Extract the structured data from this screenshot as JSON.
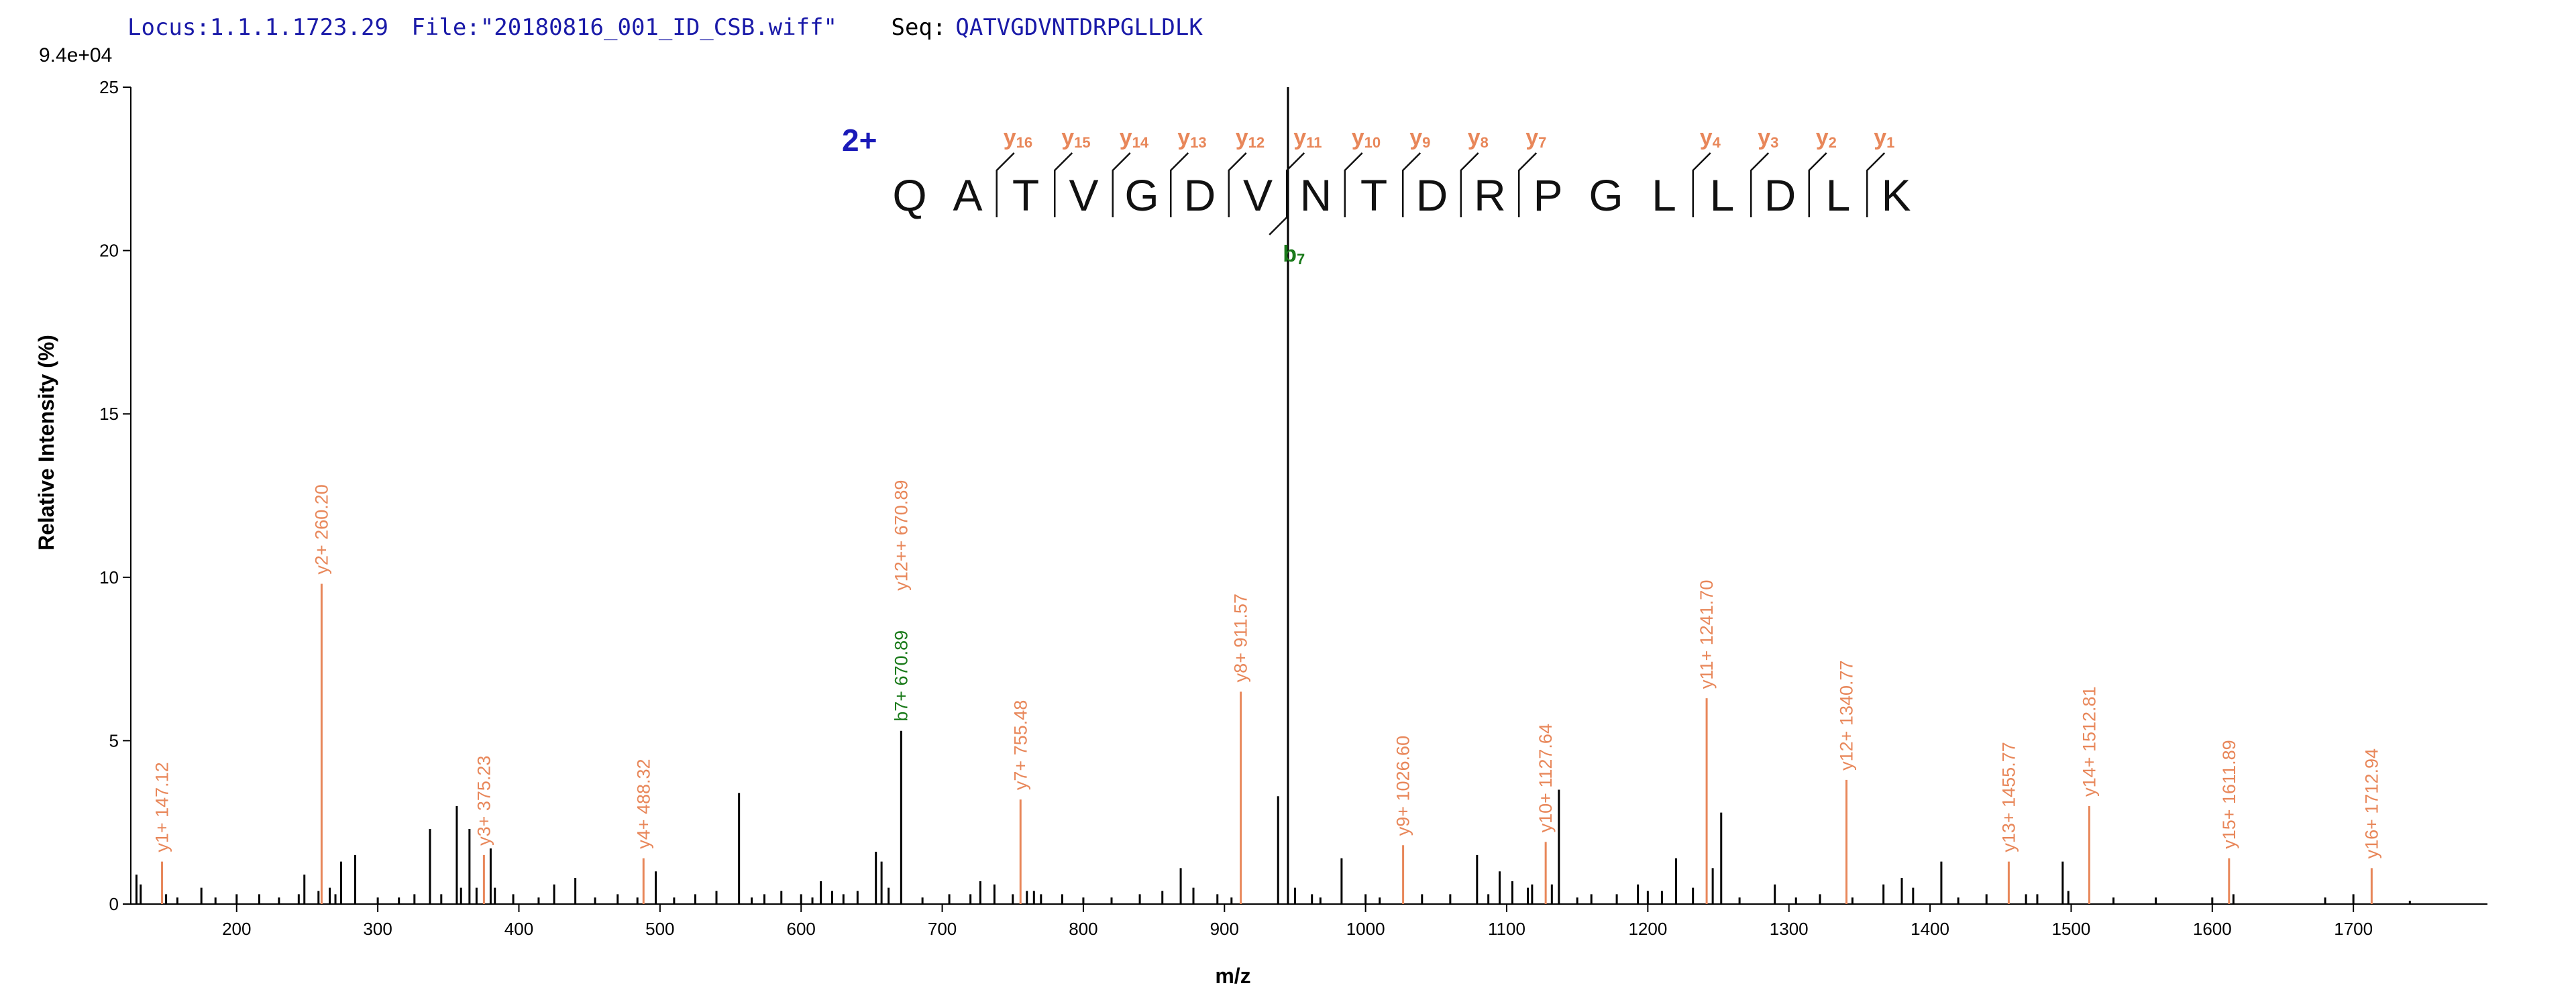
{
  "header": {
    "locus_label": "Locus:",
    "locus_value": "1.1.1.1723.29",
    "file_label": "File:",
    "file_value": "\"20180816_001_ID_CSB.wiff\"",
    "seq_label": "Seq:",
    "seq_value": "QATVGDVNTDRPGLLDLK"
  },
  "colors": {
    "y_ion": "#e8875a",
    "b_ion": "#1a7a1a",
    "other": "#000000",
    "charge": "#1a1ab8",
    "header_value": "#1a1aa8",
    "header_label": "#000000"
  },
  "chart_data": {
    "type": "bar",
    "xlabel": "m/z",
    "ylabel": "Relative  Intensity (%)",
    "y_scale_label": "9.4e+04",
    "xlim": [
      125,
      1795
    ],
    "ylim": [
      0,
      25
    ],
    "x_ticks": [
      200,
      300,
      400,
      500,
      600,
      700,
      800,
      900,
      1000,
      1100,
      1200,
      1300,
      1400,
      1500,
      1600,
      1700
    ],
    "y_ticks": [
      0,
      5,
      10,
      15,
      20,
      25
    ],
    "labeled_peaks": [
      {
        "mz": 147.12,
        "intensity": 1.3,
        "label": "y1+ 147.12",
        "ion": "y"
      },
      {
        "mz": 260.2,
        "intensity": 9.8,
        "label": "y2+ 260.20",
        "ion": "y"
      },
      {
        "mz": 375.23,
        "intensity": 1.5,
        "label": "y3+ 375.23",
        "ion": "y"
      },
      {
        "mz": 488.32,
        "intensity": 1.4,
        "label": "y4+ 488.32",
        "ion": "y"
      },
      {
        "mz": 670.89,
        "intensity": 5.3,
        "label": "b7+ 670.89",
        "ion": "b"
      },
      {
        "mz": 670.89,
        "intensity": 5.3,
        "label": "y12++ 670.89",
        "ion": "y"
      },
      {
        "mz": 755.48,
        "intensity": 3.2,
        "label": "y7+ 755.48",
        "ion": "y"
      },
      {
        "mz": 911.57,
        "intensity": 6.5,
        "label": "y8+ 911.57",
        "ion": "y"
      },
      {
        "mz": 1026.6,
        "intensity": 1.8,
        "label": "y9+ 1026.60",
        "ion": "y"
      },
      {
        "mz": 1127.64,
        "intensity": 1.9,
        "label": "y10+ 1127.64",
        "ion": "y"
      },
      {
        "mz": 1241.7,
        "intensity": 6.3,
        "label": "y11+ 1241.70",
        "ion": "y"
      },
      {
        "mz": 1340.77,
        "intensity": 3.8,
        "label": "y12+ 1340.77",
        "ion": "y"
      },
      {
        "mz": 1455.77,
        "intensity": 1.3,
        "label": "y13+ 1455.77",
        "ion": "y"
      },
      {
        "mz": 1512.81,
        "intensity": 3.0,
        "label": "y14+ 1512.81",
        "ion": "y"
      },
      {
        "mz": 1611.89,
        "intensity": 1.4,
        "label": "y15+ 1611.89",
        "ion": "y"
      },
      {
        "mz": 1712.94,
        "intensity": 1.1,
        "label": "y16+ 1712.94",
        "ion": "y"
      }
    ],
    "other_peaks": [
      [
        129,
        0.9
      ],
      [
        132,
        0.6
      ],
      [
        150,
        0.3
      ],
      [
        158,
        0.2
      ],
      [
        175,
        0.5
      ],
      [
        185,
        0.2
      ],
      [
        200,
        0.3
      ],
      [
        216,
        0.3
      ],
      [
        230,
        0.2
      ],
      [
        244,
        0.3
      ],
      [
        248,
        0.9
      ],
      [
        258,
        0.4
      ],
      [
        266,
        0.5
      ],
      [
        270,
        0.3
      ],
      [
        274,
        1.3
      ],
      [
        284,
        1.5
      ],
      [
        300,
        0.2
      ],
      [
        315,
        0.2
      ],
      [
        326,
        0.3
      ],
      [
        337,
        2.3
      ],
      [
        345,
        0.3
      ],
      [
        356,
        3.0
      ],
      [
        359,
        0.5
      ],
      [
        365,
        2.3
      ],
      [
        370,
        0.5
      ],
      [
        380,
        1.7
      ],
      [
        383,
        0.5
      ],
      [
        396,
        0.3
      ],
      [
        414,
        0.2
      ],
      [
        425,
        0.6
      ],
      [
        440,
        0.8
      ],
      [
        454,
        0.2
      ],
      [
        470,
        0.3
      ],
      [
        484,
        0.2
      ],
      [
        497,
        1.0
      ],
      [
        510,
        0.2
      ],
      [
        525,
        0.3
      ],
      [
        540,
        0.4
      ],
      [
        556,
        3.4
      ],
      [
        565,
        0.2
      ],
      [
        574,
        0.3
      ],
      [
        586,
        0.4
      ],
      [
        600,
        0.3
      ],
      [
        608,
        0.2
      ],
      [
        614,
        0.7
      ],
      [
        622,
        0.4
      ],
      [
        630,
        0.3
      ],
      [
        640,
        0.4
      ],
      [
        653,
        1.6
      ],
      [
        657,
        1.3
      ],
      [
        662,
        0.5
      ],
      [
        686,
        0.2
      ],
      [
        705,
        0.3
      ],
      [
        720,
        0.3
      ],
      [
        727,
        0.7
      ],
      [
        737,
        0.6
      ],
      [
        750,
        0.3
      ],
      [
        760,
        0.4
      ],
      [
        765,
        0.4
      ],
      [
        770,
        0.3
      ],
      [
        785,
        0.3
      ],
      [
        800,
        0.2
      ],
      [
        820,
        0.2
      ],
      [
        840,
        0.3
      ],
      [
        856,
        0.4
      ],
      [
        869,
        1.1
      ],
      [
        878,
        0.5
      ],
      [
        895,
        0.3
      ],
      [
        905,
        0.2
      ],
      [
        938,
        3.3
      ],
      [
        945,
        25.0
      ],
      [
        950,
        0.5
      ],
      [
        962,
        0.3
      ],
      [
        968,
        0.2
      ],
      [
        983,
        1.4
      ],
      [
        1000,
        0.3
      ],
      [
        1010,
        0.2
      ],
      [
        1040,
        0.3
      ],
      [
        1060,
        0.3
      ],
      [
        1079,
        1.5
      ],
      [
        1087,
        0.3
      ],
      [
        1095,
        1.0
      ],
      [
        1104,
        0.7
      ],
      [
        1115,
        0.5
      ],
      [
        1118,
        0.6
      ],
      [
        1132,
        0.6
      ],
      [
        1137,
        3.5
      ],
      [
        1150,
        0.2
      ],
      [
        1160,
        0.3
      ],
      [
        1178,
        0.3
      ],
      [
        1193,
        0.6
      ],
      [
        1200,
        0.4
      ],
      [
        1210,
        0.4
      ],
      [
        1220,
        1.4
      ],
      [
        1232,
        0.5
      ],
      [
        1246,
        1.1
      ],
      [
        1252,
        2.8
      ],
      [
        1265,
        0.2
      ],
      [
        1290,
        0.6
      ],
      [
        1305,
        0.2
      ],
      [
        1322,
        0.3
      ],
      [
        1345,
        0.2
      ],
      [
        1367,
        0.6
      ],
      [
        1380,
        0.8
      ],
      [
        1388,
        0.5
      ],
      [
        1408,
        1.3
      ],
      [
        1420,
        0.2
      ],
      [
        1440,
        0.3
      ],
      [
        1468,
        0.3
      ],
      [
        1476,
        0.3
      ],
      [
        1494,
        1.3
      ],
      [
        1498,
        0.4
      ],
      [
        1530,
        0.2
      ],
      [
        1560,
        0.2
      ],
      [
        1600,
        0.2
      ],
      [
        1615,
        0.3
      ],
      [
        1680,
        0.2
      ],
      [
        1700,
        0.3
      ],
      [
        1740,
        0.1
      ]
    ],
    "sequence": {
      "charge": "2+",
      "residues": [
        "Q",
        "A",
        "T",
        "V",
        "G",
        "D",
        "V",
        "N",
        "T",
        "D",
        "R",
        "P",
        "G",
        "L",
        "L",
        "D",
        "L",
        "K"
      ],
      "y_ions": [
        {
          "label": "y",
          "n": "16",
          "after": 2
        },
        {
          "label": "y",
          "n": "15",
          "after": 3
        },
        {
          "label": "y",
          "n": "14",
          "after": 4
        },
        {
          "label": "y",
          "n": "13",
          "after": 5
        },
        {
          "label": "y",
          "n": "12",
          "after": 6
        },
        {
          "label": "y",
          "n": "11",
          "after": 7
        },
        {
          "label": "y",
          "n": "10",
          "after": 8
        },
        {
          "label": "y",
          "n": "9",
          "after": 9
        },
        {
          "label": "y",
          "n": "8",
          "after": 10
        },
        {
          "label": "y",
          "n": "7",
          "after": 11
        },
        {
          "label": "y",
          "n": "4",
          "after": 14
        },
        {
          "label": "y",
          "n": "3",
          "after": 15
        },
        {
          "label": "y",
          "n": "2",
          "after": 16
        },
        {
          "label": "y",
          "n": "1",
          "after": 17
        }
      ],
      "b_ions": [
        {
          "label": "b",
          "n": "7",
          "after": 7
        }
      ]
    }
  }
}
